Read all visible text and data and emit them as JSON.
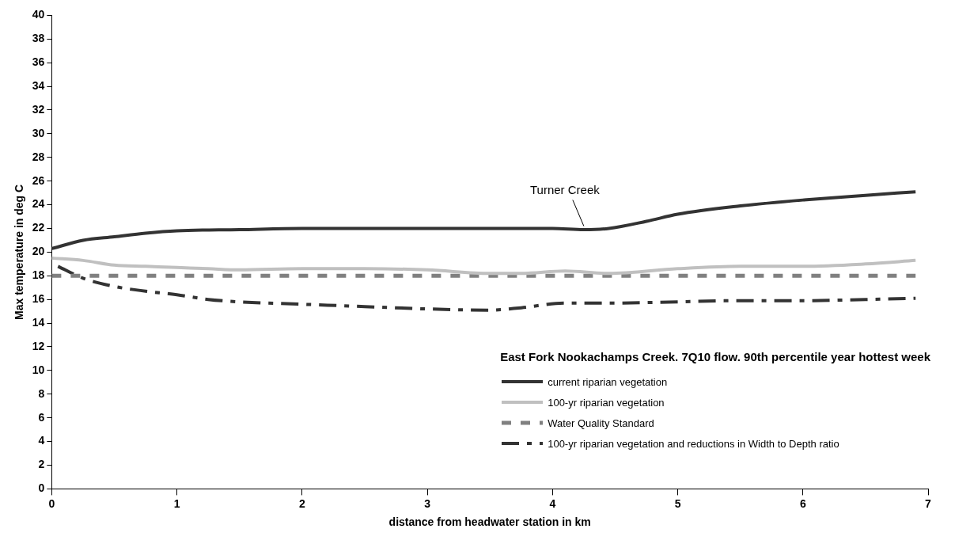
{
  "chart_data": {
    "type": "line",
    "xlabel": "distance from headwater station in km",
    "ylabel": "Max temperature in deg C",
    "legend_title": "East Fork Nookachamps Creek. 7Q10 flow. 90th percentile year hottest week",
    "legend": "bottom right",
    "grid": false,
    "marker": "none",
    "xlim": [
      0,
      7
    ],
    "xticks": [
      0,
      1,
      2,
      3,
      4,
      5,
      6,
      7
    ],
    "ylim": [
      0,
      40
    ],
    "yticks": [
      0,
      2,
      4,
      6,
      8,
      10,
      12,
      14,
      16,
      18,
      20,
      22,
      24,
      26,
      28,
      30,
      32,
      34,
      36,
      38,
      40
    ],
    "annotations": [
      {
        "text": "Turner Creek",
        "x": 4.25,
        "y": 22
      }
    ],
    "series": [
      {
        "name": "current riparian vegetation",
        "color": "#333333",
        "line_style": "solid",
        "x": [
          0,
          0.25,
          0.5,
          0.75,
          1,
          1.5,
          2,
          2.5,
          3,
          3.5,
          4,
          4.25,
          4.45,
          4.75,
          5,
          5.5,
          6,
          6.5,
          6.9
        ],
        "values": [
          20.3,
          21,
          21.3,
          21.6,
          21.8,
          21.9,
          22,
          22,
          22,
          22,
          22,
          21.9,
          22,
          22.6,
          23.2,
          23.9,
          24.4,
          24.8,
          25.1
        ]
      },
      {
        "name": "100-yr riparian vegetation",
        "color": "#c0c0c0",
        "line_style": "solid",
        "x": [
          0,
          0.25,
          0.5,
          0.75,
          1,
          1.25,
          1.5,
          2,
          2.5,
          3,
          3.5,
          3.75,
          4.1,
          4.45,
          5,
          5.5,
          6,
          6.5,
          6.9
        ],
        "values": [
          19.5,
          19.3,
          18.9,
          18.8,
          18.7,
          18.6,
          18.5,
          18.6,
          18.6,
          18.5,
          18.2,
          18.2,
          18.4,
          18.2,
          18.6,
          18.8,
          18.8,
          19,
          19.3
        ]
      },
      {
        "name": "Water Quality Standard",
        "color": "#808080",
        "line_style": "dashed",
        "x": [
          0,
          6.9
        ],
        "values": [
          18,
          18
        ]
      },
      {
        "name": "100-yr riparian vegetation and reductions in Width to Depth ratio",
        "color": "#333333",
        "line_style": "dashdot",
        "x": [
          0.05,
          0.25,
          0.5,
          0.75,
          1,
          1.25,
          1.5,
          2,
          2.5,
          3,
          3.5,
          3.75,
          4.1,
          4.5,
          5,
          5.5,
          6,
          6.5,
          6.9
        ],
        "values": [
          18.8,
          17.8,
          17.1,
          16.7,
          16.4,
          16,
          15.8,
          15.6,
          15.4,
          15.2,
          15.1,
          15.3,
          15.7,
          15.7,
          15.8,
          15.9,
          15.9,
          16,
          16.1
        ]
      }
    ]
  }
}
